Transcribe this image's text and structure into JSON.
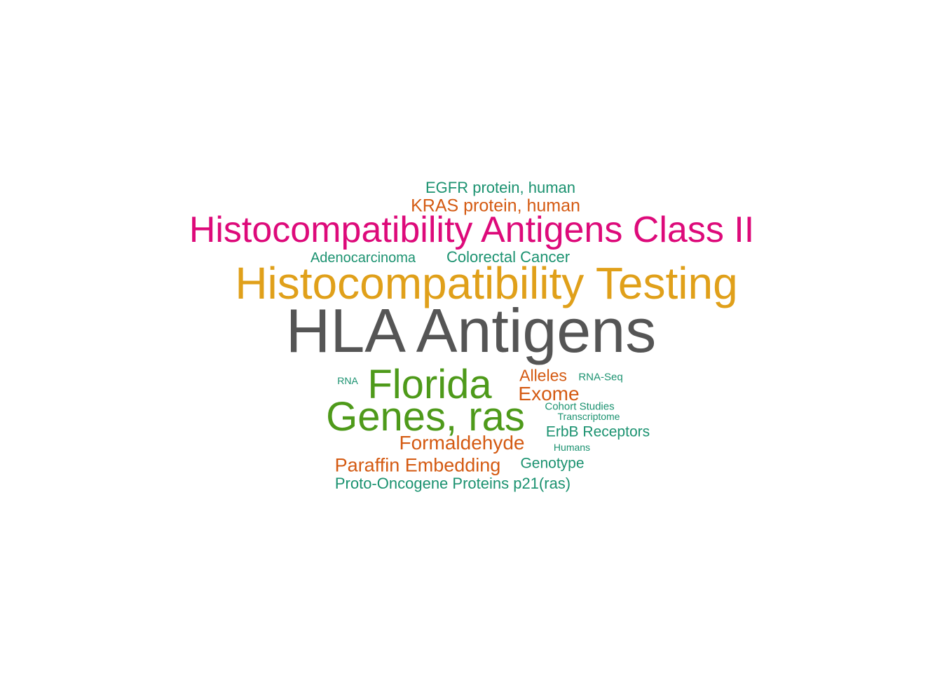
{
  "colors": {
    "gray": "#555555",
    "gold": "#E0A01A",
    "magenta": "#DD0A7A",
    "green": "#4E9A1A",
    "orange": "#D45A12",
    "teal": "#1B9270"
  },
  "words": [
    {
      "text": "HLA Antigens",
      "color": "gray"
    },
    {
      "text": "Histocompatibility Testing",
      "color": "gold"
    },
    {
      "text": "Histocompatibility Antigens Class II",
      "color": "magenta"
    },
    {
      "text": "Genes, ras",
      "color": "green"
    },
    {
      "text": "Florida",
      "color": "green"
    },
    {
      "text": "KRAS protein, human",
      "color": "orange"
    },
    {
      "text": "EGFR protein, human",
      "color": "teal"
    },
    {
      "text": "Adenocarcinoma",
      "color": "teal"
    },
    {
      "text": "Colorectal Cancer",
      "color": "teal"
    },
    {
      "text": "Formaldehyde",
      "color": "orange"
    },
    {
      "text": "Paraffin Embedding",
      "color": "orange"
    },
    {
      "text": "Proto-Oncogene Proteins p21(ras)",
      "color": "teal"
    },
    {
      "text": "Exome",
      "color": "orange"
    },
    {
      "text": "Alleles",
      "color": "orange"
    },
    {
      "text": "ErbB Receptors",
      "color": "teal"
    },
    {
      "text": "Genotype",
      "color": "teal"
    },
    {
      "text": "RNA-Seq",
      "color": "teal"
    },
    {
      "text": "Cohort Studies",
      "color": "teal"
    },
    {
      "text": "Transcriptome",
      "color": "teal"
    },
    {
      "text": "Humans",
      "color": "teal"
    },
    {
      "text": "RNA",
      "color": "teal"
    }
  ]
}
